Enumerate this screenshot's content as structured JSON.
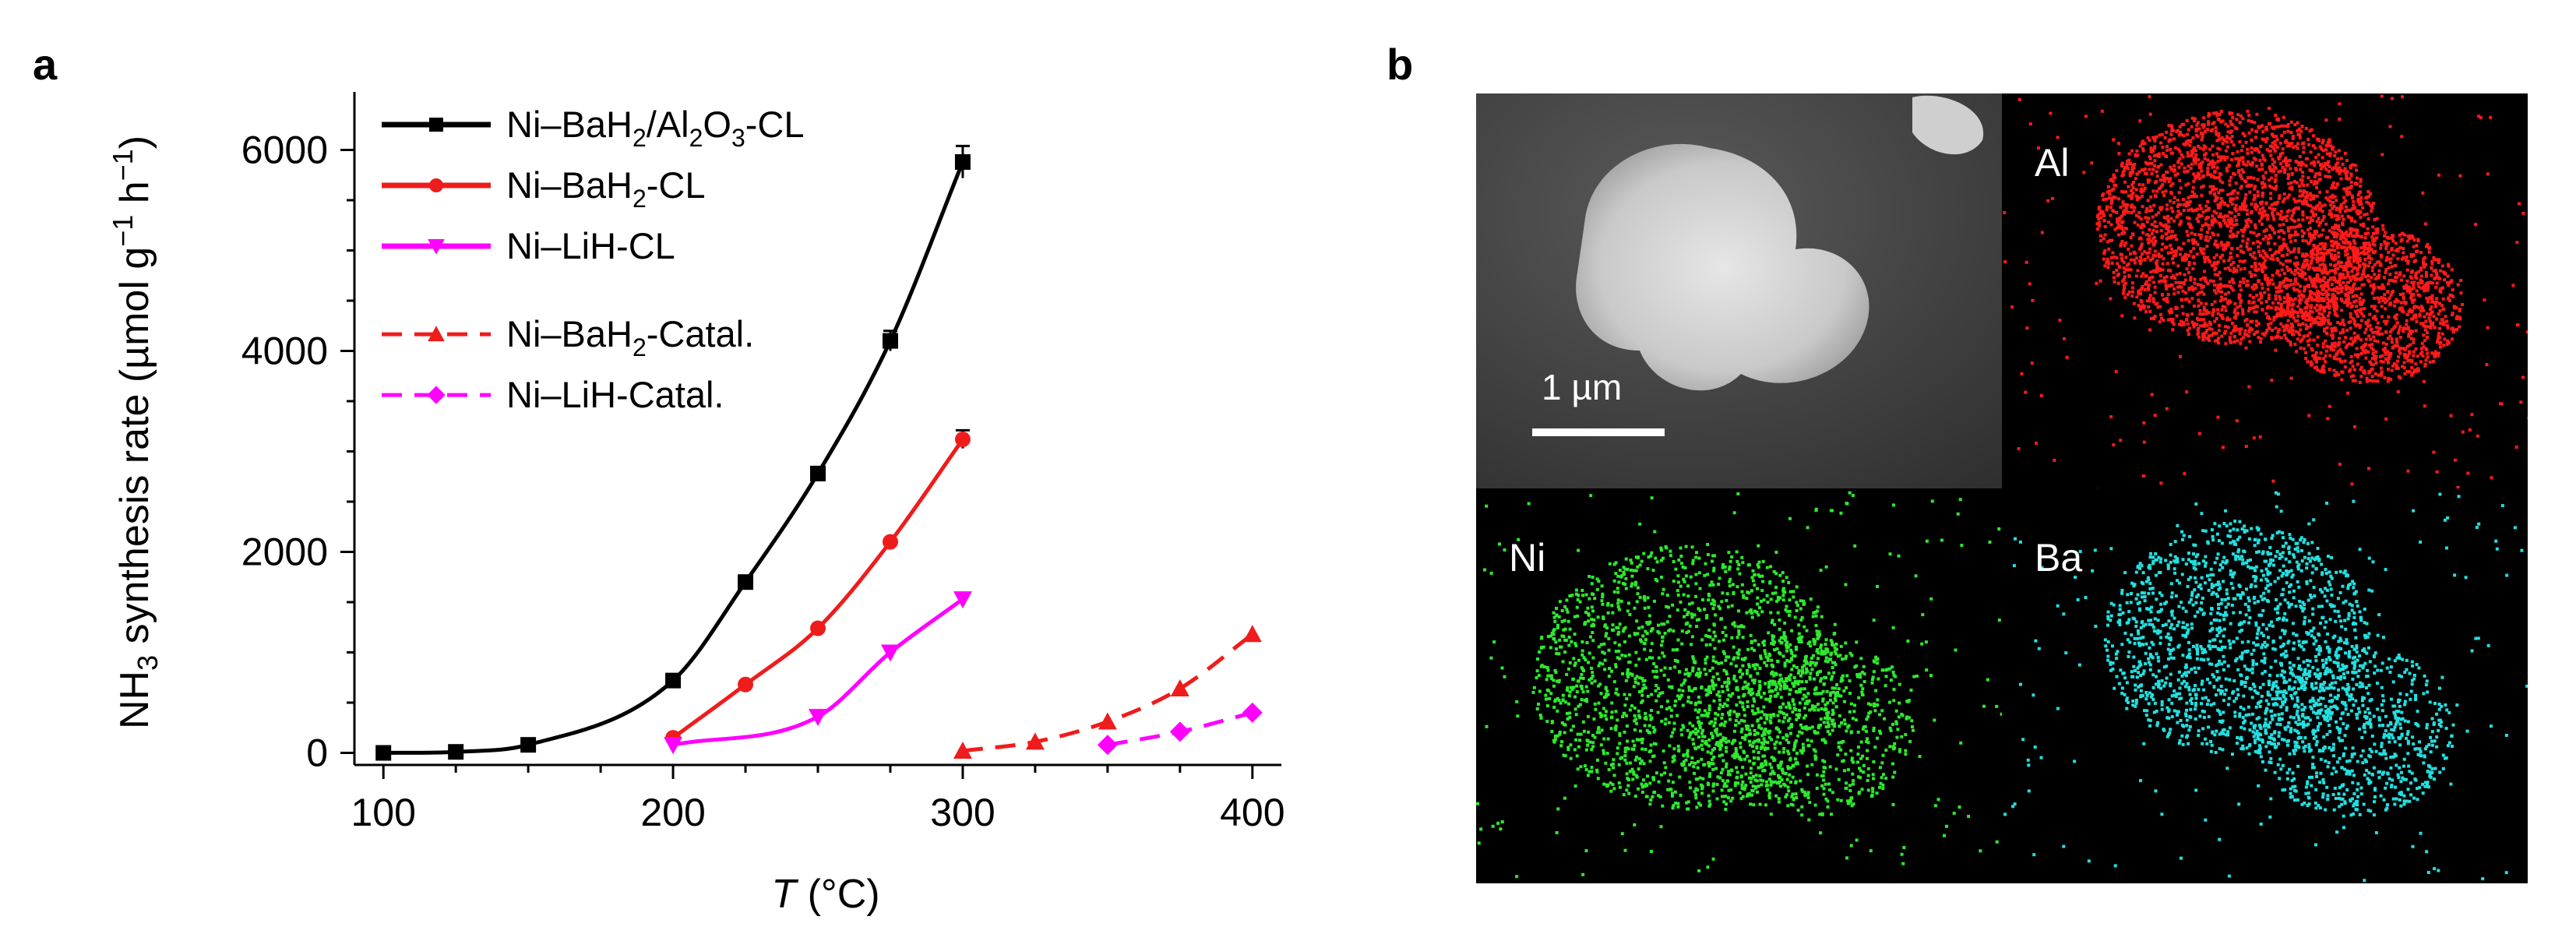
{
  "panels": {
    "a": "a",
    "b": "b"
  },
  "chart_data": {
    "type": "line",
    "x_label_italic": "T",
    "x_label_rest": " (°C)",
    "y_label_parts": [
      "NH",
      "3",
      " synthesis rate (µmol g",
      "−1",
      " h",
      "−1",
      ")"
    ],
    "xlim": [
      90,
      410
    ],
    "ylim": [
      -120,
      6500
    ],
    "x_ticks": [
      100,
      200,
      300,
      400
    ],
    "y_ticks": [
      0,
      2000,
      4000,
      6000
    ],
    "grid": false,
    "legend_position": "top-left",
    "series": [
      {
        "name_parts": [
          "Ni–BaH",
          "2",
          "/Al",
          "2",
          "O",
          "3",
          "-CL"
        ],
        "color": "#000000",
        "dash": false,
        "marker": "square",
        "x": [
          100,
          125,
          150,
          200,
          225,
          250,
          275,
          300
        ],
        "y": [
          0,
          10,
          80,
          720,
          1700,
          2780,
          4100,
          5880
        ],
        "err": [
          0,
          0,
          0,
          0,
          0,
          60,
          100,
          160
        ],
        "fit_x": [
          100,
          300
        ],
        "fit_coef": [
          -3,
          0,
          5.5e-05
        ]
      },
      {
        "name_parts": [
          "Ni–BaH",
          "2",
          "-CL"
        ],
        "color": "#ef1c1c",
        "dash": false,
        "marker": "circle",
        "x": [
          200,
          225,
          250,
          275,
          300
        ],
        "y": [
          150,
          680,
          1240,
          2100,
          3120
        ],
        "err": [
          0,
          0,
          0,
          0,
          90
        ],
        "fit_x": [
          200,
          300
        ]
      },
      {
        "name_parts": [
          "Ni–LiH-CL"
        ],
        "color": "#ff00ff",
        "dash": false,
        "marker": "triangle-down",
        "x": [
          200,
          250,
          275,
          300
        ],
        "y": [
          80,
          360,
          1000,
          1530
        ],
        "err": [
          0,
          0,
          0,
          0
        ],
        "fit_x": [
          200,
          300
        ]
      },
      {
        "name_parts": [
          "Ni–BaH",
          "2",
          "-Catal."
        ],
        "color": "#ef1c1c",
        "dash": true,
        "marker": "triangle-up",
        "x": [
          300,
          325,
          350,
          375,
          400
        ],
        "y": [
          20,
          110,
          310,
          640,
          1180
        ],
        "err": [
          0,
          0,
          0,
          0,
          0
        ],
        "fit_x": [
          300,
          400
        ]
      },
      {
        "name_parts": [
          "Ni–LiH-Catal."
        ],
        "color": "#ff00ff",
        "dash": true,
        "marker": "diamond",
        "x": [
          350,
          375,
          400
        ],
        "y": [
          80,
          210,
          400
        ],
        "err": [
          0,
          0,
          0
        ],
        "fit_x": [
          350,
          400
        ]
      }
    ]
  },
  "maps": {
    "tiles": [
      {
        "label": "",
        "color": "#ffffff"
      },
      {
        "label": "Al",
        "color": "#ff1a1a"
      },
      {
        "label": "Ni",
        "color": "#2ee82e"
      },
      {
        "label": "Ba",
        "color": "#22e0e0"
      }
    ],
    "scale_label": "1 µm"
  }
}
